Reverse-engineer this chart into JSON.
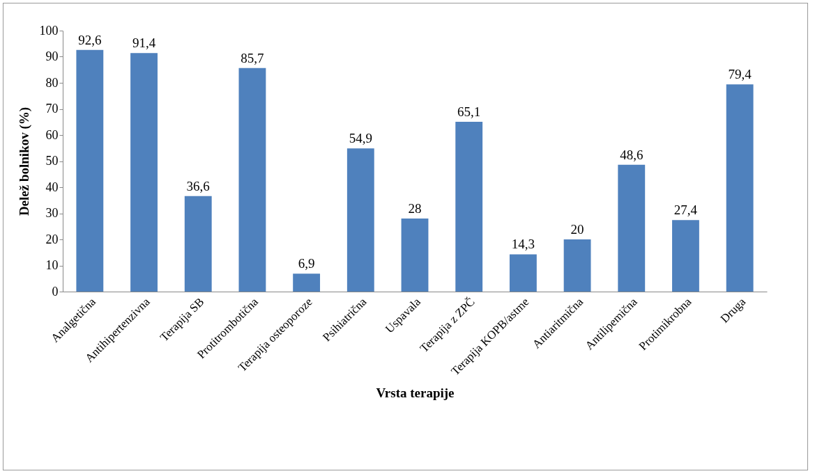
{
  "chart_data": {
    "type": "bar",
    "xlabel": "Vrsta terapije",
    "ylabel": "Delež bolnikov (%)",
    "categories": [
      "Analgetična",
      "Antihipertenzivna",
      "Terapija SB",
      "Protitrombotična",
      "Terapija osteoporoze",
      "Psihiatrična",
      "Uspavala",
      "Terapija z ZPČ",
      "Terapija KOPB/astme",
      "Antiaritmična",
      "Antilipemična",
      "Protimikrobna",
      "Druga"
    ],
    "values": [
      92.6,
      91.4,
      36.6,
      85.7,
      6.9,
      54.9,
      28,
      65.1,
      14.3,
      20,
      48.6,
      27.4,
      79.4
    ],
    "value_labels": [
      "92,6",
      "91,4",
      "36,6",
      "85,7",
      "6,9",
      "54,9",
      "28",
      "65,1",
      "14,3",
      "20",
      "48,6",
      "27,4",
      "79,4"
    ],
    "color": "#4f81bd",
    "ylim": [
      0,
      100
    ],
    "yticks": [
      0,
      10,
      20,
      30,
      40,
      50,
      60,
      70,
      80,
      90,
      100
    ],
    "grid": false
  }
}
